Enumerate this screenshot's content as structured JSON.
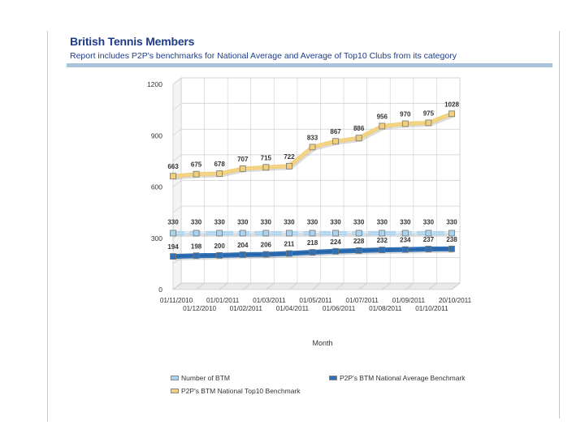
{
  "report": {
    "title": "British Tennis Members",
    "subtitle": "Report includes P2P's benchmarks for National Average and Average of Top10 Clubs from its category"
  },
  "colors": {
    "accent": "#1f3c88",
    "rule": "#a9c3dc",
    "series_btm": "#a9d3ee",
    "series_avg": "#2f6fb3",
    "series_top10": "#f1cf7b"
  },
  "chart_data": {
    "type": "line",
    "title": "",
    "xlabel": "Month",
    "ylabel": "",
    "ylim": [
      0,
      1200
    ],
    "yticks": [
      0,
      300,
      600,
      900,
      1200
    ],
    "grid": true,
    "categories": [
      "01/11/2010",
      "01/12/2010",
      "01/01/2011",
      "01/02/2011",
      "01/03/2011",
      "01/04/2011",
      "01/05/2011",
      "01/06/2011",
      "01/07/2011",
      "01/08/2011",
      "01/09/2011",
      "01/10/2011",
      "20/10/2011"
    ],
    "series": [
      {
        "name": "Number of BTM",
        "values": [
          330,
          330,
          330,
          330,
          330,
          330,
          330,
          330,
          330,
          330,
          330,
          330,
          330
        ]
      },
      {
        "name": "P2P's BTM National Average Benchmark",
        "values": [
          194,
          198,
          200,
          204,
          206,
          211,
          218,
          224,
          228,
          232,
          234,
          237,
          238
        ]
      },
      {
        "name": "P2P's BTM National Top10 Benchmark",
        "values": [
          663,
          675,
          678,
          707,
          715,
          722,
          833,
          867,
          886,
          956,
          970,
          975,
          1028
        ]
      }
    ],
    "legend_position": "bottom"
  }
}
